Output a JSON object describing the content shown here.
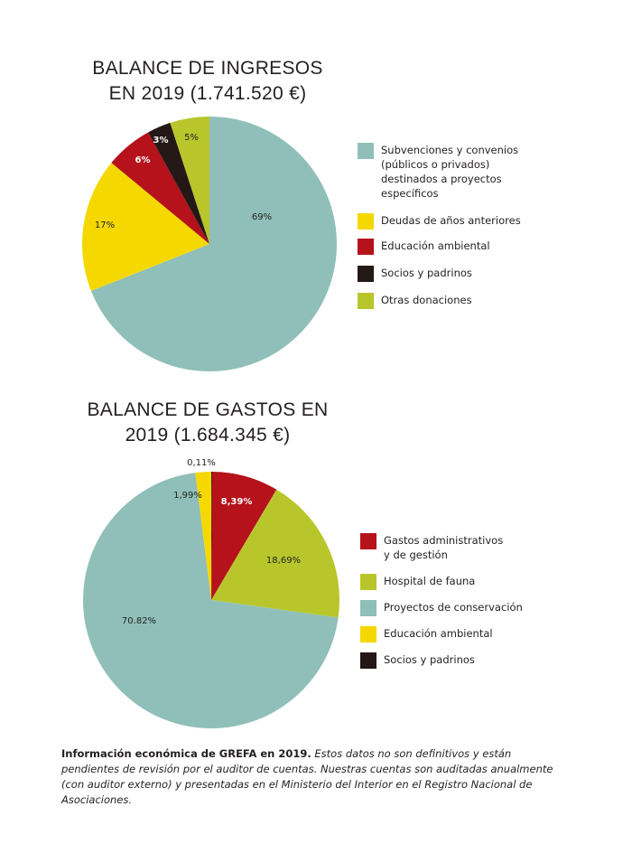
{
  "chart_data": [
    {
      "type": "pie",
      "title_lines": [
        "BALANCE DE INGRESOS",
        "EN 2019 (1.741.520 €)"
      ],
      "slices": [
        {
          "label": "Subvenciones y convenios\n(públicos o privados)\ndestinados a proyectos\nespecíficos",
          "value": 69,
          "display": "69%",
          "color": "#8fbfb8",
          "text_color": "#231f20"
        },
        {
          "label": "Deudas de años anteriores",
          "value": 17,
          "display": "17%",
          "color": "#f5d800",
          "text_color": "#231f20"
        },
        {
          "label": "Educación ambiental",
          "value": 6,
          "display": "6%",
          "color": "#b5121b",
          "text_color": "#ffffff"
        },
        {
          "label": "Socios y padrinos",
          "value": 3,
          "display": "3%",
          "color": "#231815",
          "text_color": "#ffffff"
        },
        {
          "label": "Otras donaciones",
          "value": 5,
          "display": "5%",
          "color": "#b8c62b",
          "text_color": "#231f20"
        }
      ],
      "legend_order": [
        0,
        1,
        2,
        3,
        4
      ]
    },
    {
      "type": "pie",
      "title_lines": [
        "BALANCE DE GASTOS EN",
        "2019 (1.684.345 €)"
      ],
      "slices": [
        {
          "label": "Gastos administrativos\ny de gestión",
          "value": 8.39,
          "display": "8,39%",
          "color": "#b5121b",
          "text_color": "#ffffff"
        },
        {
          "label": "Hospital de fauna",
          "value": 18.69,
          "display": "18,69%",
          "color": "#b8c62b",
          "text_color": "#231f20"
        },
        {
          "label": "Proyectos de conservación",
          "value": 70.82,
          "display": "70.82%",
          "color": "#8fbfb8",
          "text_color": "#231f20"
        },
        {
          "label": "Educación ambiental",
          "value": 1.99,
          "display": "1,99%",
          "color": "#f5d800",
          "text_color": "#231f20"
        },
        {
          "label": "Socios y padrinos",
          "value": 0.11,
          "display": "0,11%",
          "color": "#231815",
          "text_color": "#231f20"
        }
      ],
      "legend_order": [
        0,
        1,
        2,
        3,
        4
      ]
    }
  ],
  "caption": {
    "bold": "Información económica de GREFA en 2019.",
    "italic": " Estos datos no son definitivos y están pendientes de revisión por el auditor de cuentas. Nuestras cuentas son auditadas anualmente (con auditor externo) y presentadas en el Ministerio del Interior en el Registro Nacional de Asociaciones."
  }
}
